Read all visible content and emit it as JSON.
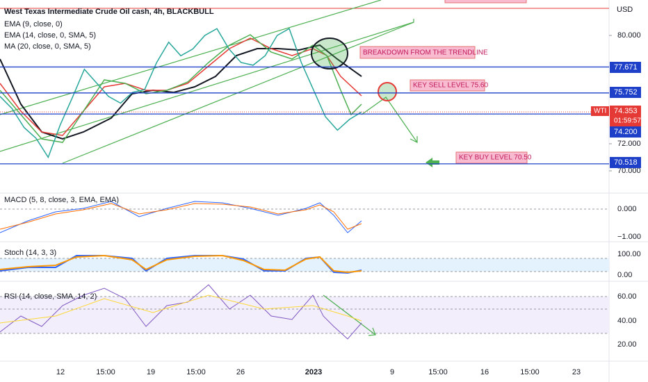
{
  "header": {
    "symbol": "West Texas Intermediate Crude Oil cash, 4h, BLACKBULL",
    "indicators": [
      "EMA (9, close, 0)",
      "EMA (14, close, 0, SMA, 5)",
      "MA (20, close, 0, SMA, 5)"
    ]
  },
  "price_axis": {
    "currency": "USD",
    "ticks": [
      {
        "value": 80,
        "label": "80.000"
      },
      {
        "value": 72,
        "label": "72.000"
      },
      {
        "value": 70,
        "label": "70.000"
      }
    ]
  },
  "levels": [
    {
      "value": 77.671,
      "label": "77.671"
    },
    {
      "value": 75.752,
      "label": "75.752"
    },
    {
      "value": 74.2,
      "label": "74.200"
    },
    {
      "value": 70.518,
      "label": "70.518"
    }
  ],
  "last_price": {
    "symbol": "WTI",
    "value": 74.353,
    "label": "74.353",
    "countdown": "01:59:57"
  },
  "annotations": [
    "BREAKDOWN FROM THE TRENDLINE",
    "KEY SELL LEVEL 75.60",
    "KEY BUY LEVEL 70.50"
  ],
  "price_path": [
    75.5,
    74.6,
    73.2,
    72.4,
    71.0,
    73.4,
    75.4,
    77.5,
    76.5,
    75.5,
    75.0,
    75.8,
    76.0,
    78.0,
    79.5,
    78.5,
    79.0,
    80.0,
    80.5,
    79.0,
    78.0,
    77.8,
    78.5,
    80.0,
    80.5,
    78.0,
    76.0,
    74.0,
    73.0,
    73.8,
    74.35
  ],
  "time_axis": [
    "12",
    "15:00",
    "19",
    "15:00",
    "26",
    "2023",
    "9",
    "15:00",
    "16",
    "15:00",
    "23"
  ],
  "panes": [
    {
      "title": "MACD (5, 8, close, 3, EMA, EMA)",
      "ticks": [
        "0.000",
        "−1.000"
      ]
    },
    {
      "title": "Stoch (14, 3, 3)",
      "ticks": [
        "100.00",
        "0.00"
      ]
    },
    {
      "title": "RSI (14, close, SMA, 14, 2)",
      "ticks": [
        "60.00",
        "40.00",
        "20.00"
      ]
    }
  ]
}
